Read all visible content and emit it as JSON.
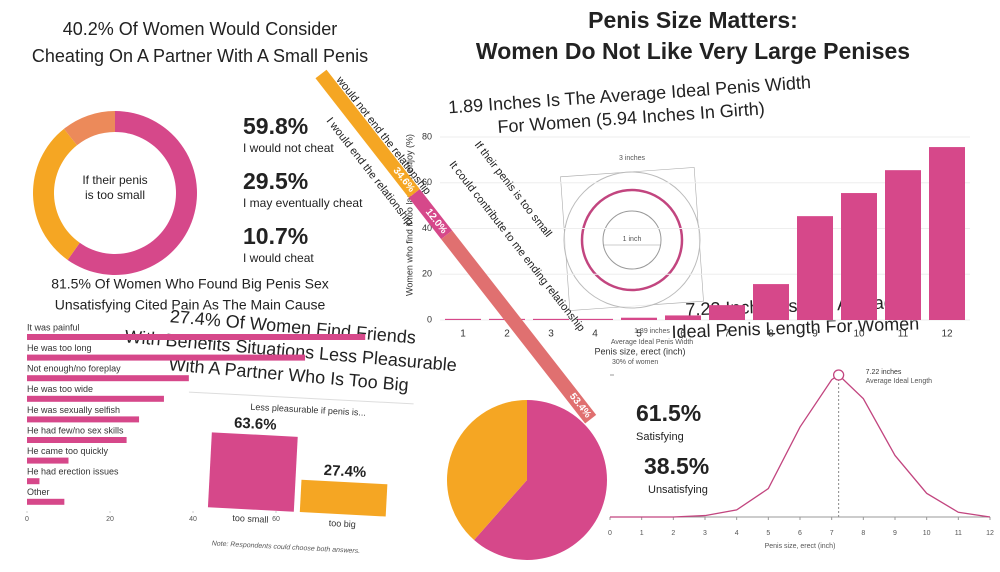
{
  "title": [
    "Penis Size Matters:",
    "Women Do Not Like Very Large Penises"
  ],
  "chart_data": [
    {
      "type": "donut",
      "title": [
        "40.2% Of Women Would Consider",
        "Cheating On A Partner With A Small Penis"
      ],
      "center_label": [
        "If their penis",
        "is too small"
      ],
      "categories": [
        "I would not cheat",
        "I may eventually cheat",
        "I would cheat"
      ],
      "values": [
        59.8,
        29.5,
        10.7
      ],
      "value_labels": [
        "59.8%",
        "29.5%",
        "10.7%"
      ],
      "colors": [
        "#d6488a",
        "#f5a623",
        "#ec8a5a"
      ]
    },
    {
      "type": "hbar",
      "title": [
        "81.5% Of Women Who Found Big Penis Sex",
        "Unsatisfying Cited Pain As The Main Cause"
      ],
      "categories": [
        "It was painful",
        "He was too long",
        "Not enough/no foreplay",
        "He was too wide",
        "He was sexually selfish",
        "He had few/no sex skills",
        "He came too quickly",
        "He had erection issues",
        "Other"
      ],
      "values": [
        81.5,
        67,
        39,
        33,
        27,
        24,
        10,
        3,
        9
      ],
      "color": "#d6488a",
      "xlim": [
        0,
        82
      ],
      "xticks": [
        0,
        20,
        40,
        60
      ]
    },
    {
      "type": "bar",
      "title": [
        "27.4% Of Women Find Friends",
        "With Benefits Situations Less Pleasurable",
        "With A Partner Who Is Too Big"
      ],
      "subtitle": "Less pleasurable if penis is...",
      "categories": [
        "too small",
        "too big"
      ],
      "values": [
        63.6,
        27.4
      ],
      "value_labels": [
        "63.6%",
        "27.4%"
      ],
      "colors": [
        "#d6488a",
        "#f5a623"
      ],
      "ylim": [
        0,
        70
      ],
      "note": "Note: Respondents could choose both answers."
    },
    {
      "type": "bar",
      "ylabel": "Women who find it too large to enjoy (%)",
      "xlabel": "Penis size, erect (inch)",
      "categories": [
        "1",
        "2",
        "3",
        "4",
        "5",
        "6",
        "7",
        "8",
        "9",
        "10",
        "11",
        "12"
      ],
      "values": [
        0.5,
        0.5,
        0.5,
        0.5,
        1,
        2,
        6.5,
        15.7,
        45.4,
        55.5,
        65.5,
        75.6
      ],
      "color": "#d6488a",
      "ylim": [
        0,
        85
      ],
      "yticks": [
        0,
        20,
        40,
        60,
        80
      ]
    },
    {
      "type": "diagram",
      "title": [
        "1.89 Inches Is The Average Ideal Penis Width",
        "For Women (5.94 Inches In Girth)"
      ],
      "outer_label": "3 inches",
      "inner_label": "1 inch",
      "value_label": "1.89 inches",
      "caption": "Average Ideal Penis Width"
    },
    {
      "type": "pie",
      "categories": [
        "Satisfying",
        "Unsatisfying"
      ],
      "values": [
        61.5,
        38.5
      ],
      "value_labels": [
        "61.5%",
        "38.5%"
      ],
      "colors": [
        "#d6488a",
        "#f5a623"
      ]
    },
    {
      "type": "line",
      "title": [
        "7.22 Inches Is The Average",
        "Ideal Penis Length For Women"
      ],
      "xlabel": "Penis size, erect (inch)",
      "x": [
        0,
        1,
        2,
        3,
        4,
        5,
        6,
        7,
        7.22,
        8,
        9,
        10,
        11,
        12
      ],
      "values": [
        0,
        0,
        0,
        0.3,
        1.5,
        6,
        19,
        29,
        30,
        25,
        13,
        5,
        1,
        0
      ],
      "color": "#c2457f",
      "xlim": [
        0,
        12
      ],
      "xticks": [
        0,
        1,
        2,
        3,
        4,
        5,
        6,
        7,
        8,
        9,
        10,
        11,
        12
      ],
      "ylim": [
        0,
        31
      ],
      "yticks": [
        {
          "value": 30,
          "label": "30% of women"
        }
      ],
      "annotation": [
        "7.22 inches",
        "Average Ideal Length"
      ]
    },
    {
      "type": "stacked",
      "title": "If their penis is too small",
      "categories": [
        "would not end the relationship",
        "I would end the relationship",
        "It could contribute to me ending relationship"
      ],
      "values": [
        34.6,
        12.0,
        53.4
      ],
      "value_labels": [
        "34.6%",
        "12.0%",
        "53.4%"
      ],
      "colors": [
        "#f5a623",
        "#d6488a",
        "#e07070"
      ]
    }
  ]
}
